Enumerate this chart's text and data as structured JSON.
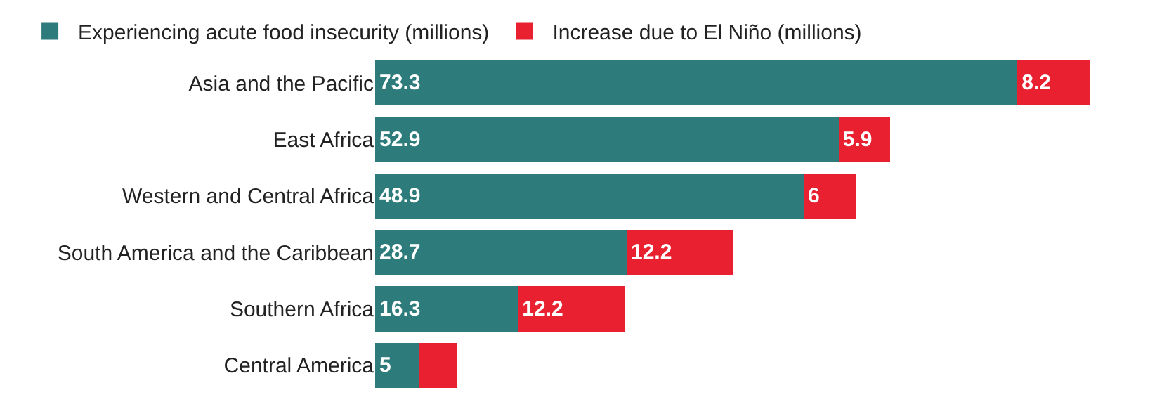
{
  "chart_data": {
    "type": "bar",
    "orientation": "horizontal",
    "stacked": true,
    "legend": "top left",
    "grid": false,
    "categories": [
      "Asia and the Pacific",
      "East Africa",
      "Western and Central Africa",
      "South America and the Caribbean",
      "Southern Africa",
      "Central America"
    ],
    "series": [
      {
        "name": "Experiencing acute food insecurity (millions)",
        "color": "#2e7b7b",
        "values": [
          73.3,
          52.9,
          48.9,
          28.7,
          16.3,
          5
        ],
        "value_labels": [
          "73.3",
          "52.9",
          "48.9",
          "28.7",
          "16.3",
          "5"
        ]
      },
      {
        "name": "Increase due to El Niño (millions)",
        "color": "#e8202f",
        "values": [
          8.2,
          5.9,
          6,
          12.2,
          12.2,
          4.4
        ],
        "value_labels": [
          "8.2",
          "5.9",
          "6",
          "12.2",
          "12.2",
          null
        ]
      }
    ]
  }
}
